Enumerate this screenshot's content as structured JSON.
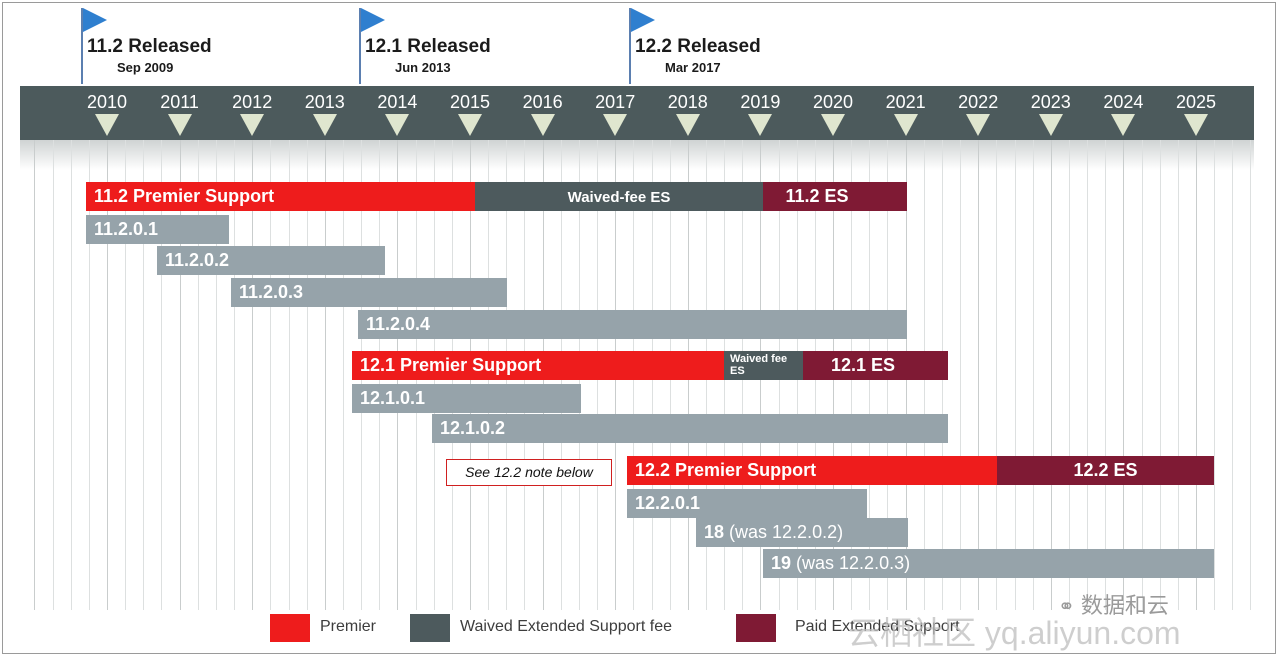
{
  "releases": [
    {
      "title": "11.2 Released",
      "date": "Sep 2009"
    },
    {
      "title": "12.1 Released",
      "date": "Jun 2013"
    },
    {
      "title": "12.2 Released",
      "date": "Mar 2017"
    }
  ],
  "years": [
    "2010",
    "2011",
    "2012",
    "2013",
    "2014",
    "2015",
    "2016",
    "2017",
    "2018",
    "2019",
    "2020",
    "2021",
    "2022",
    "2023",
    "2024",
    "2025"
  ],
  "bars": {
    "p112": "11.2 Premier Support",
    "w112": "Waived-fee ES",
    "e112": "11.2 ES",
    "r11201": "11.2.0.1",
    "r11202": "11.2.0.2",
    "r11203": "11.2.0.3",
    "r11204": "11.2.0.4",
    "p121": "12.1 Premier Support",
    "w121": "Waived fee ES",
    "e121": "12.1 ES",
    "r12101": "12.1.0.1",
    "r12102": "12.1.0.2",
    "note": "See 12.2 note below",
    "p122": "12.2 Premier Support",
    "e122": "12.2 ES",
    "r12201": "12.2.0.1",
    "r18_num": "18",
    "r18_rest": " (was 12.2.0.2)",
    "r19_num": "19",
    "r19_rest": " (was 12.2.0.3)"
  },
  "legend": {
    "premier": "Premier",
    "waived": "Waived Extended Support fee",
    "paid": "Paid Extended Support"
  },
  "colors": {
    "premier": "#ee1c1c",
    "waived": "#4d5a5d",
    "paid": "#7f1a34",
    "release": "#96a3aa",
    "timeline": "#4c5a5c",
    "flag": "#2f7fcf"
  },
  "watermark": {
    "wechat": "数据和云",
    "site": "云栖社区 yq.aliyun.com"
  }
}
